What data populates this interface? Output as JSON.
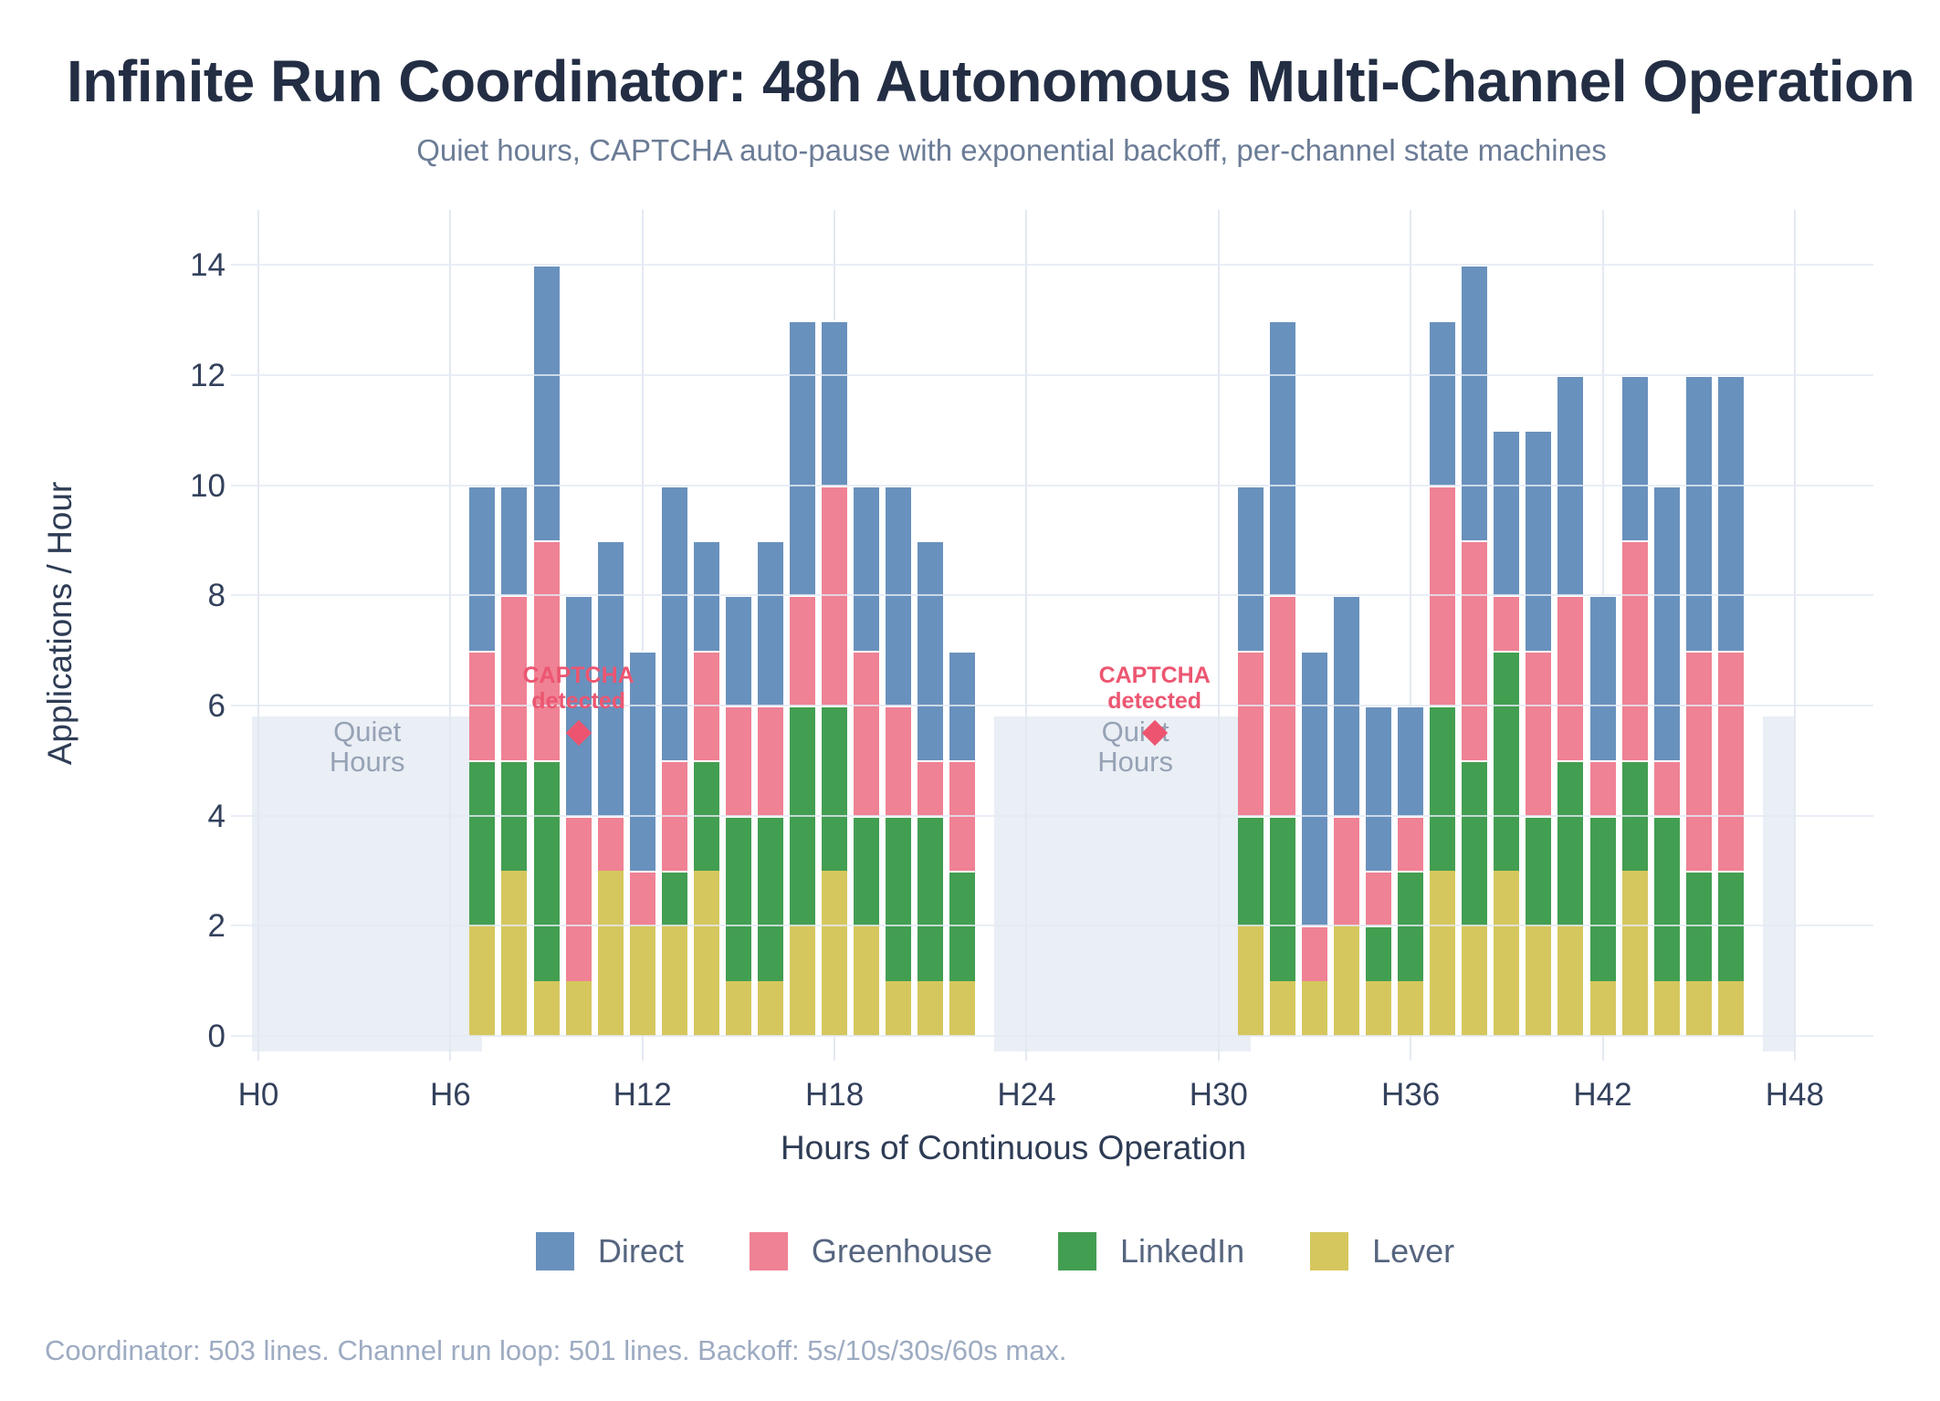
{
  "title": "Infinite Run Coordinator: 48h Autonomous Multi-Channel Operation",
  "subtitle": "Quiet hours, CAPTCHA auto-pause with exponential backoff, per-channel state machines",
  "footer": "Coordinator: 503 lines. Channel run loop: 501 lines. Backoff: 5s/10s/30s/60s max.",
  "chart_data": {
    "type": "bar",
    "stacked": true,
    "title": "Infinite Run Coordinator: 48h Autonomous Multi-Channel Operation",
    "xlabel": "Hours of Continuous Operation",
    "ylabel": "Applications / Hour",
    "xlim": [
      -0.2,
      50.4
    ],
    "ylim": [
      0,
      15
    ],
    "grid": true,
    "legend_position": "bottom",
    "x_tick_labels": [
      "H0",
      "H6",
      "H12",
      "H18",
      "H24",
      "H30",
      "H36",
      "H42",
      "H48"
    ],
    "x_tick_hours": [
      0,
      6,
      12,
      18,
      24,
      30,
      36,
      42,
      48
    ],
    "y_ticks": [
      0,
      2,
      4,
      6,
      8,
      10,
      12,
      14
    ],
    "hours": [
      7,
      8,
      9,
      10,
      11,
      12,
      13,
      14,
      15,
      16,
      17,
      18,
      19,
      20,
      21,
      22,
      31,
      32,
      33,
      34,
      35,
      36,
      37,
      38,
      39,
      40,
      41,
      42,
      43,
      44,
      45,
      46
    ],
    "stack_order": "bottom_to_top",
    "series": [
      {
        "name": "Lever",
        "color": "#d5c75e",
        "values": [
          2,
          3,
          1,
          1,
          3,
          2,
          2,
          3,
          1,
          1,
          2,
          3,
          2,
          1,
          1,
          1,
          2,
          1,
          1,
          2,
          1,
          1,
          3,
          2,
          3,
          2,
          2,
          1,
          3,
          1,
          1,
          1
        ]
      },
      {
        "name": "LinkedIn",
        "color": "#429e51",
        "values": [
          3,
          2,
          4,
          0,
          0,
          0,
          1,
          2,
          3,
          3,
          4,
          3,
          2,
          3,
          3,
          2,
          2,
          3,
          0,
          0,
          1,
          2,
          3,
          3,
          4,
          2,
          3,
          3,
          2,
          3,
          2,
          2
        ]
      },
      {
        "name": "Greenhouse",
        "color": "#ef8294",
        "values": [
          2,
          3,
          4,
          3,
          1,
          1,
          2,
          2,
          2,
          2,
          2,
          4,
          3,
          2,
          1,
          2,
          3,
          4,
          1,
          2,
          1,
          1,
          4,
          4,
          1,
          3,
          3,
          1,
          4,
          1,
          4,
          4
        ]
      },
      {
        "name": "Direct",
        "color": "#6991bd",
        "values": [
          3,
          2,
          5,
          4,
          5,
          4,
          5,
          2,
          2,
          3,
          5,
          3,
          3,
          4,
          4,
          2,
          3,
          5,
          5,
          4,
          3,
          2,
          3,
          5,
          3,
          4,
          4,
          3,
          3,
          5,
          5,
          5
        ]
      }
    ],
    "bar_totals": [
      10,
      10,
      14,
      8,
      9,
      7,
      10,
      9,
      8,
      9,
      13,
      13,
      10,
      10,
      9,
      7,
      10,
      13,
      7,
      8,
      6,
      6,
      13,
      14,
      11,
      11,
      12,
      8,
      12,
      10,
      12,
      12
    ],
    "legend": [
      {
        "label": "Direct",
        "color": "#6991bd"
      },
      {
        "label": "Greenhouse",
        "color": "#ef8294"
      },
      {
        "label": "LinkedIn",
        "color": "#429e51"
      },
      {
        "label": "Lever",
        "color": "#d5c75e"
      }
    ],
    "quiet_regions": [
      {
        "from_hour": -0.2,
        "to_hour": 7
      },
      {
        "from_hour": 23,
        "to_hour": 31
      },
      {
        "from_hour": 47,
        "to_hour": 48
      }
    ],
    "quiet_region_top_value": 5.8,
    "quiet_label_lines": [
      "Quiet",
      "Hours"
    ],
    "quiet_labels": [
      {
        "hour": 3.4,
        "value": 5.52
      },
      {
        "hour": 27.4,
        "value": 5.52
      }
    ],
    "captcha_label_lines": [
      "CAPTCHA",
      "detected"
    ],
    "captcha_events": [
      {
        "hour": 10,
        "value": 5.5
      },
      {
        "hour": 28,
        "value": 5.5
      }
    ]
  },
  "colors": {
    "direct": "#6991bd",
    "greenhouse": "#ef8294",
    "linkedin": "#429e51",
    "lever": "#d5c75e",
    "captcha": "#ec5671",
    "quiet_fill": "#eaeef5",
    "quiet_text": "#96a2b5",
    "gridline": "#e3e9f2",
    "axis_text": "#33415c",
    "axis_title": "#2e3c55",
    "title": "#232e44",
    "subtitle": "#6b7c96",
    "legend_text": "#56657f",
    "footer": "#9dabc2",
    "background": "#ffffff"
  }
}
